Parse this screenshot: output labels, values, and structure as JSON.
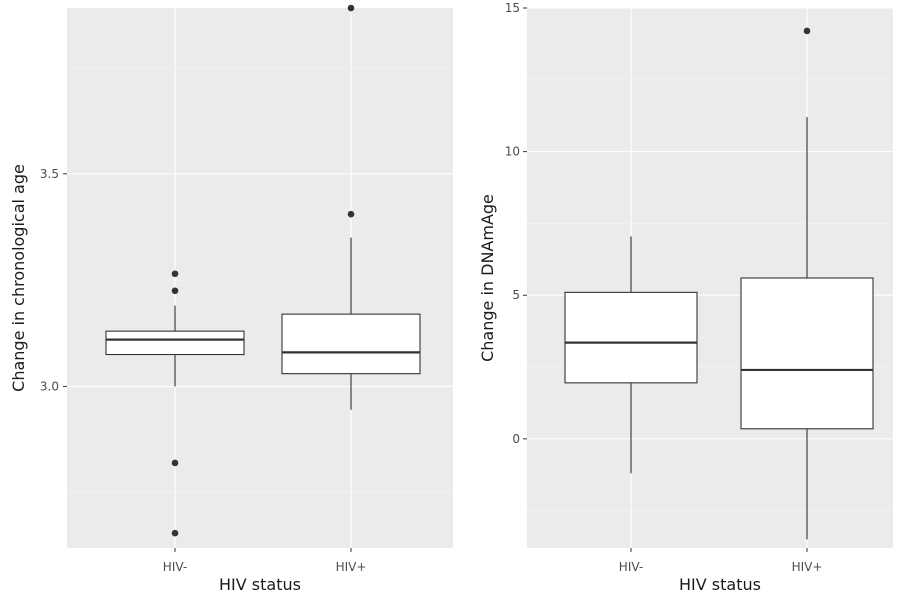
{
  "chart_data": [
    {
      "type": "box",
      "xlabel": "HIV status",
      "ylabel": "Change in chronological age",
      "categories": [
        "HIV-",
        "HIV+"
      ],
      "ylim": [
        2.62,
        3.89
      ],
      "yticks": [
        3.0,
        3.5
      ],
      "ytick_labels": [
        "3.0",
        "3.5"
      ],
      "boxes": [
        {
          "category": "HIV-",
          "lower_whisker": 3.0,
          "q1": 3.075,
          "median": 3.11,
          "q3": 3.13,
          "upper_whisker": 3.19,
          "outliers": [
            3.265,
            3.225,
            2.82,
            2.655
          ]
        },
        {
          "category": "HIV+",
          "lower_whisker": 2.945,
          "q1": 3.03,
          "median": 3.08,
          "q3": 3.17,
          "upper_whisker": 3.35,
          "outliers": [
            3.405,
            3.89
          ]
        }
      ],
      "grid": true,
      "legend": "none"
    },
    {
      "type": "box",
      "xlabel": "HIV status",
      "ylabel": "Change in DNAmAge",
      "categories": [
        "HIV-",
        "HIV+"
      ],
      "ylim": [
        -3.8,
        15.0
      ],
      "yticks": [
        0,
        5,
        10,
        15
      ],
      "ytick_labels": [
        "0",
        "5",
        "10",
        "15"
      ],
      "boxes": [
        {
          "category": "HIV-",
          "lower_whisker": -1.2,
          "q1": 1.95,
          "median": 3.35,
          "q3": 5.1,
          "upper_whisker": 7.05,
          "outliers": []
        },
        {
          "category": "HIV+",
          "lower_whisker": -3.5,
          "q1": 0.35,
          "median": 2.4,
          "q3": 5.6,
          "upper_whisker": 11.2,
          "outliers": [
            14.2
          ]
        }
      ],
      "grid": true,
      "legend": "none"
    }
  ]
}
